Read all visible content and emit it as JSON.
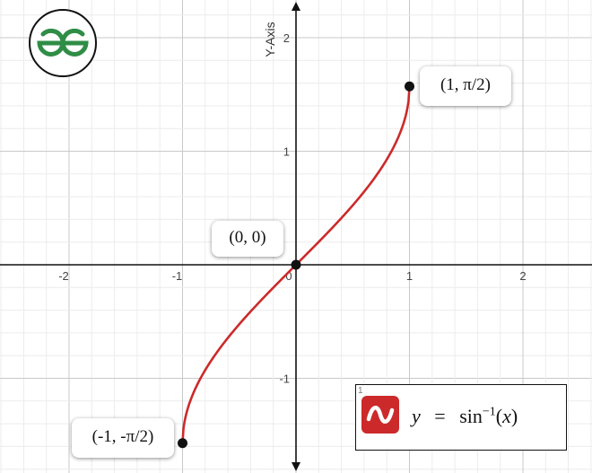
{
  "watermark": {
    "logo_name": "GfG logo"
  },
  "axes": {
    "y_title": "Y-Axis"
  },
  "expression": {
    "index": "1",
    "formula_lhs": "y",
    "formula_eq": "=",
    "formula_func": "sin",
    "formula_exp": "−1",
    "formula_arg_open": "(",
    "formula_arg": "x",
    "formula_arg_close": ")",
    "icon": "wave-icon",
    "color": "#cc2a2a"
  },
  "callouts": {
    "top": "(1, π/2)",
    "middle": "(0, 0)",
    "bottom": "(-1, -π/2)"
  },
  "chart_data": {
    "type": "line",
    "title": "",
    "xlabel": "",
    "ylabel": "Y-Axis",
    "xlim": [
      -2.6,
      2.6
    ],
    "ylim": [
      -1.8,
      2.3
    ],
    "x_ticks": [
      -2,
      -1,
      0,
      1,
      2
    ],
    "y_ticks": [
      -1,
      1,
      2
    ],
    "grid": true,
    "series": [
      {
        "function": "asin",
        "color": "#cc2a2a",
        "x": [
          -1,
          -0.99,
          -0.95,
          -0.9,
          -0.8,
          -0.7,
          -0.6,
          -0.5,
          -0.4,
          -0.3,
          -0.2,
          -0.1,
          0,
          0.1,
          0.2,
          0.3,
          0.4,
          0.5,
          0.6,
          0.7,
          0.8,
          0.9,
          0.95,
          0.99,
          1
        ],
        "y": [
          -1.571,
          -1.429,
          -1.253,
          -1.12,
          -0.927,
          -0.775,
          -0.644,
          -0.524,
          -0.412,
          -0.305,
          -0.201,
          -0.1,
          0,
          0.1,
          0.201,
          0.305,
          0.412,
          0.524,
          0.644,
          0.775,
          0.927,
          1.12,
          1.253,
          1.429,
          1.571
        ]
      }
    ],
    "points": [
      {
        "x": -1,
        "y": -1.571,
        "label": "(-1, -π/2)"
      },
      {
        "x": 0,
        "y": 0,
        "label": "(0, 0)"
      },
      {
        "x": 1,
        "y": 1.571,
        "label": "(1, π/2)"
      }
    ]
  }
}
